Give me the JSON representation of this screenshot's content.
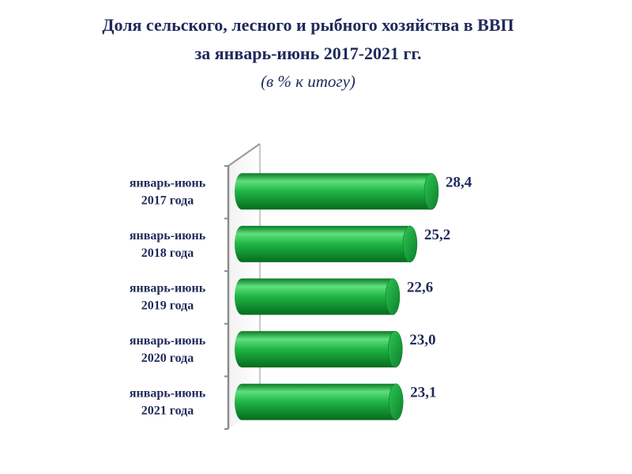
{
  "chart_data": {
    "type": "bar",
    "orientation": "horizontal",
    "title_line1": "Доля сельского, лесного и рыбного хозяйства в ВВП",
    "title_line2": "за январь-июнь 2017-2021 гг.",
    "subtitle": "(в % к итогу)",
    "categories": [
      [
        "январь-июнь",
        "2017 года"
      ],
      [
        "январь-июнь",
        "2018 года"
      ],
      [
        "январь-июнь",
        "2019 года"
      ],
      [
        "январь-июнь",
        "2020 года"
      ],
      [
        "январь-июнь",
        "2021 года"
      ]
    ],
    "values": [
      28.4,
      25.2,
      22.6,
      23.0,
      23.1
    ],
    "value_labels": [
      "28,4",
      "25,2",
      "22,6",
      "23,0",
      "23,1"
    ],
    "xlim": [
      0,
      30
    ],
    "grid": false,
    "legend": "none",
    "bar_color": "#1aa83c"
  }
}
